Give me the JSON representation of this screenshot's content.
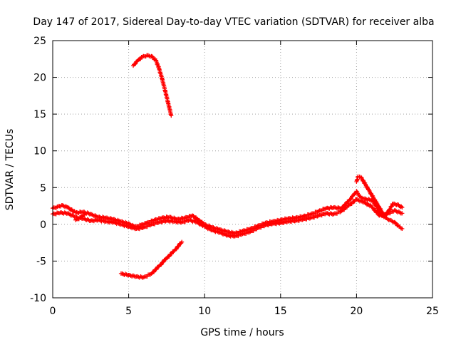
{
  "chart_data": {
    "type": "scatter",
    "title": "Day 147 of 2017, Sidereal Day-to-day VTEC variation (SDTVAR) for receiver alba",
    "xlabel": "GPS time / hours",
    "ylabel": "SDTVAR / TECUs",
    "xlim": [
      0,
      25
    ],
    "ylim": [
      -10,
      25
    ],
    "xticks": [
      0,
      5,
      10,
      15,
      20,
      25
    ],
    "yticks": [
      -10,
      -5,
      0,
      5,
      10,
      15,
      20,
      25
    ],
    "xtick_labels": [
      "0",
      "5",
      "10",
      "15",
      "20",
      "25"
    ],
    "ytick_labels": [
      "-10",
      "-5",
      "0",
      "5",
      "10",
      "15",
      "20",
      "25"
    ],
    "grid": true,
    "marker": "plus",
    "color": "#ff0000",
    "series": [
      {
        "name": "upper arc",
        "points": [
          [
            5.3,
            21.6
          ],
          [
            5.6,
            22.3
          ],
          [
            5.9,
            22.8
          ],
          [
            6.2,
            23.0
          ],
          [
            6.5,
            22.9
          ],
          [
            6.8,
            22.3
          ],
          [
            7.0,
            21.2
          ],
          [
            7.2,
            19.8
          ],
          [
            7.4,
            18.2
          ],
          [
            7.6,
            16.5
          ],
          [
            7.8,
            14.8
          ]
        ]
      },
      {
        "name": "lower arc",
        "points": [
          [
            4.5,
            -6.7
          ],
          [
            5.0,
            -6.9
          ],
          [
            5.5,
            -7.1
          ],
          [
            6.0,
            -7.2
          ],
          [
            6.5,
            -6.7
          ],
          [
            7.0,
            -5.7
          ],
          [
            7.5,
            -4.6
          ],
          [
            8.0,
            -3.6
          ],
          [
            8.5,
            -2.4
          ]
        ]
      },
      {
        "name": "main band",
        "points": [
          [
            0.0,
            2.2
          ],
          [
            0.3,
            2.4
          ],
          [
            0.6,
            2.6
          ],
          [
            1.0,
            2.3
          ],
          [
            1.5,
            1.6
          ],
          [
            2.0,
            1.7
          ],
          [
            2.5,
            1.4
          ],
          [
            3.0,
            1.0
          ],
          [
            3.5,
            0.9
          ],
          [
            4.0,
            0.7
          ],
          [
            4.5,
            0.4
          ],
          [
            5.0,
            0.1
          ],
          [
            5.4,
            -0.3
          ],
          [
            5.8,
            -0.1
          ],
          [
            6.2,
            0.2
          ],
          [
            6.7,
            0.6
          ],
          [
            7.2,
            0.9
          ],
          [
            7.7,
            1.0
          ],
          [
            8.2,
            0.7
          ],
          [
            8.7,
            0.9
          ],
          [
            9.2,
            1.2
          ],
          [
            9.6,
            0.6
          ],
          [
            10.0,
            0.0
          ],
          [
            10.5,
            -0.4
          ],
          [
            11.0,
            -0.7
          ],
          [
            11.5,
            -1.0
          ],
          [
            12.0,
            -1.2
          ],
          [
            12.5,
            -0.9
          ],
          [
            13.0,
            -0.6
          ],
          [
            13.5,
            -0.2
          ],
          [
            14.0,
            0.2
          ],
          [
            14.5,
            0.4
          ],
          [
            15.0,
            0.6
          ],
          [
            15.5,
            0.8
          ],
          [
            16.0,
            0.9
          ],
          [
            16.5,
            1.1
          ],
          [
            17.0,
            1.4
          ],
          [
            17.5,
            1.8
          ],
          [
            18.0,
            2.2
          ],
          [
            18.5,
            2.3
          ],
          [
            19.0,
            2.2
          ],
          [
            19.5,
            3.2
          ],
          [
            19.8,
            4.0
          ],
          [
            20.0,
            4.5
          ],
          [
            20.2,
            3.8
          ],
          [
            20.5,
            3.5
          ],
          [
            21.0,
            3.3
          ],
          [
            21.3,
            2.5
          ],
          [
            21.5,
            1.6
          ],
          [
            21.8,
            1.0
          ],
          [
            22.1,
            1.8
          ],
          [
            22.4,
            2.8
          ],
          [
            22.7,
            2.7
          ],
          [
            23.0,
            2.3
          ]
        ]
      },
      {
        "name": "band lower edge",
        "points": [
          [
            0.0,
            1.4
          ],
          [
            0.5,
            1.6
          ],
          [
            1.0,
            1.5
          ],
          [
            1.5,
            1.0
          ],
          [
            2.0,
            0.8
          ],
          [
            2.5,
            0.5
          ],
          [
            3.0,
            0.6
          ],
          [
            3.5,
            0.4
          ],
          [
            4.0,
            0.3
          ],
          [
            4.5,
            0.0
          ],
          [
            5.0,
            -0.3
          ],
          [
            5.5,
            -0.6
          ],
          [
            6.0,
            -0.4
          ],
          [
            6.5,
            0.0
          ],
          [
            7.0,
            0.3
          ],
          [
            7.5,
            0.5
          ],
          [
            8.0,
            0.4
          ],
          [
            8.5,
            0.3
          ],
          [
            9.0,
            0.6
          ],
          [
            9.5,
            0.3
          ],
          [
            10.0,
            -0.3
          ],
          [
            10.5,
            -0.8
          ],
          [
            11.0,
            -1.1
          ],
          [
            11.5,
            -1.5
          ],
          [
            12.0,
            -1.6
          ],
          [
            12.5,
            -1.3
          ],
          [
            13.0,
            -1.0
          ],
          [
            13.5,
            -0.5
          ],
          [
            14.0,
            -0.1
          ],
          [
            14.5,
            0.1
          ],
          [
            15.0,
            0.2
          ],
          [
            15.5,
            0.4
          ],
          [
            16.0,
            0.5
          ],
          [
            16.5,
            0.7
          ],
          [
            17.0,
            0.9
          ],
          [
            17.5,
            1.2
          ],
          [
            18.0,
            1.5
          ],
          [
            18.5,
            1.4
          ],
          [
            19.0,
            1.8
          ],
          [
            19.5,
            2.6
          ],
          [
            20.0,
            3.4
          ],
          [
            20.5,
            3.0
          ],
          [
            21.0,
            2.4
          ],
          [
            21.5,
            1.2
          ],
          [
            22.0,
            1.4
          ],
          [
            22.5,
            1.9
          ],
          [
            23.0,
            1.5
          ]
        ]
      },
      {
        "name": "branches",
        "points": [
          [
            1.5,
            0.6
          ],
          [
            1.8,
            0.9
          ],
          [
            2.1,
            1.3
          ],
          [
            20.0,
            5.8
          ],
          [
            20.1,
            6.5
          ],
          [
            20.3,
            6.4
          ],
          [
            21.9,
            0.9
          ],
          [
            22.2,
            0.6
          ],
          [
            22.5,
            0.3
          ],
          [
            22.8,
            -0.3
          ],
          [
            23.0,
            -0.6
          ]
        ]
      }
    ]
  }
}
